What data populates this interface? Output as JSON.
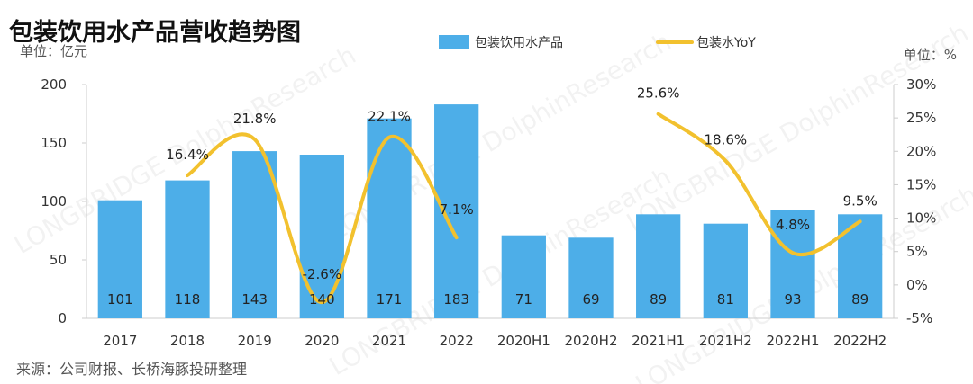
{
  "title": "包装饮用水产品营收趋势图",
  "left_unit": "单位：亿元",
  "right_unit": "单位：%",
  "source": "来源：公司财报、长桥海豚投研整理",
  "watermark": "LONGBRIDGE DolphinResearch",
  "colors": {
    "bar": "#4daee8",
    "line": "#f2c12e",
    "title": "#111111",
    "text": "#333333",
    "axis": "#cccccc",
    "grid": "#e6e6e6"
  },
  "chart_data": {
    "type": "bar",
    "categories": [
      "2017",
      "2018",
      "2019",
      "2020",
      "2021",
      "2022",
      "2020H1",
      "2020H2",
      "2021H1",
      "2021H2",
      "2022H1",
      "2022H2"
    ],
    "legend_position": "top",
    "grid": false,
    "series": [
      {
        "name": "包装饮用水产品",
        "type": "bar",
        "axis": "left",
        "values": [
          101,
          118,
          143,
          140,
          171,
          183,
          71,
          69,
          89,
          81,
          93,
          89
        ],
        "data_labels": [
          "101",
          "118",
          "143",
          "140",
          "171",
          "183",
          "71",
          "69",
          "89",
          "81",
          "93",
          "89"
        ]
      },
      {
        "name": "包装水YoY",
        "type": "line",
        "axis": "right",
        "smooth": true,
        "segments": [
          {
            "categories": [
              "2018",
              "2019",
              "2020",
              "2021",
              "2022"
            ],
            "values": [
              16.4,
              21.8,
              -2.6,
              22.1,
              7.1
            ]
          },
          {
            "categories": [
              "2021H1",
              "2021H2",
              "2022H1",
              "2022H2"
            ],
            "values": [
              25.6,
              18.6,
              4.8,
              9.5
            ]
          }
        ],
        "data_labels": [
          "16.4%",
          "21.8%",
          "-2.6%",
          "22.1%",
          "7.1%",
          "25.6%",
          "18.6%",
          "4.8%",
          "9.5%"
        ]
      }
    ],
    "left_axis": {
      "ylim": [
        0,
        200
      ],
      "ticks": [
        "0",
        "50",
        "100",
        "150",
        "200"
      ]
    },
    "right_axis": {
      "ylim": [
        -5,
        30
      ],
      "ticks": [
        "-5%",
        "0%",
        "5%",
        "10%",
        "15%",
        "20%",
        "25%",
        "30%"
      ]
    }
  }
}
